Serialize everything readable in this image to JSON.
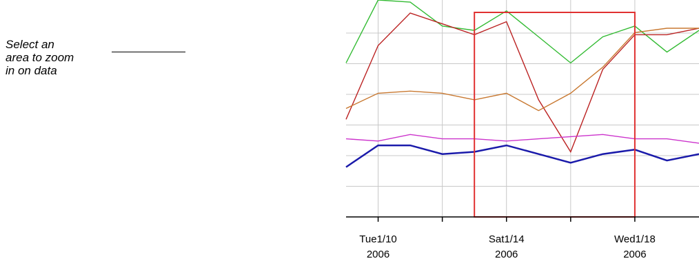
{
  "annotation": {
    "text_lines": [
      "Select an",
      "area to zoom",
      "in on data"
    ]
  },
  "chart_data": {
    "type": "line",
    "x": [
      "2006-01-09",
      "2006-01-10",
      "2006-01-11",
      "2006-01-12",
      "2006-01-13",
      "2006-01-14",
      "2006-01-15",
      "2006-01-16",
      "2006-01-17",
      "2006-01-18",
      "2006-01-19",
      "2006-01-20"
    ],
    "xlim": [
      "2006-01-09",
      "2006-01-20"
    ],
    "ylim": [
      0,
      10
    ],
    "x_ticks": [
      {
        "x": "2006-01-10",
        "line1": "Tue1/10",
        "line2": "2006"
      },
      {
        "x": "2006-01-14",
        "line1": "Sat1/14",
        "line2": "2006"
      },
      {
        "x": "2006-01-18",
        "line1": "Wed1/18",
        "line2": "2006"
      }
    ],
    "x_minor_ticks": [
      "2006-01-12",
      "2006-01-16",
      "2006-01-20"
    ],
    "grid": true,
    "axes_labels_shown": false,
    "selection": {
      "x_start": "2006-01-13",
      "x_end": "2006-01-18",
      "y_start": 0,
      "y_end": 10,
      "color": "#e03030"
    },
    "series": [
      {
        "color": "#33bb33",
        "values": [
          7.1,
          10.0,
          9.9,
          8.8,
          8.6,
          9.5,
          8.3,
          7.1,
          8.3,
          8.8,
          7.6,
          8.6
        ]
      },
      {
        "color": "#bb2222",
        "values": [
          4.5,
          7.9,
          9.4,
          8.9,
          8.4,
          9.0,
          5.4,
          3.0,
          6.8,
          8.4,
          8.4,
          8.7
        ]
      },
      {
        "color": "#c87830",
        "values": [
          5.0,
          5.7,
          5.8,
          5.7,
          5.4,
          5.7,
          4.9,
          5.7,
          6.9,
          8.5,
          8.7,
          8.7
        ]
      },
      {
        "color": "#cc33cc",
        "values": [
          3.6,
          3.5,
          3.8,
          3.6,
          3.6,
          3.5,
          3.6,
          3.7,
          3.8,
          3.6,
          3.6,
          3.4
        ]
      },
      {
        "color": "#1a1aaa",
        "values": [
          2.3,
          3.3,
          3.3,
          2.9,
          3.0,
          3.3,
          2.9,
          2.5,
          2.9,
          3.1,
          2.6,
          2.9
        ]
      }
    ]
  }
}
